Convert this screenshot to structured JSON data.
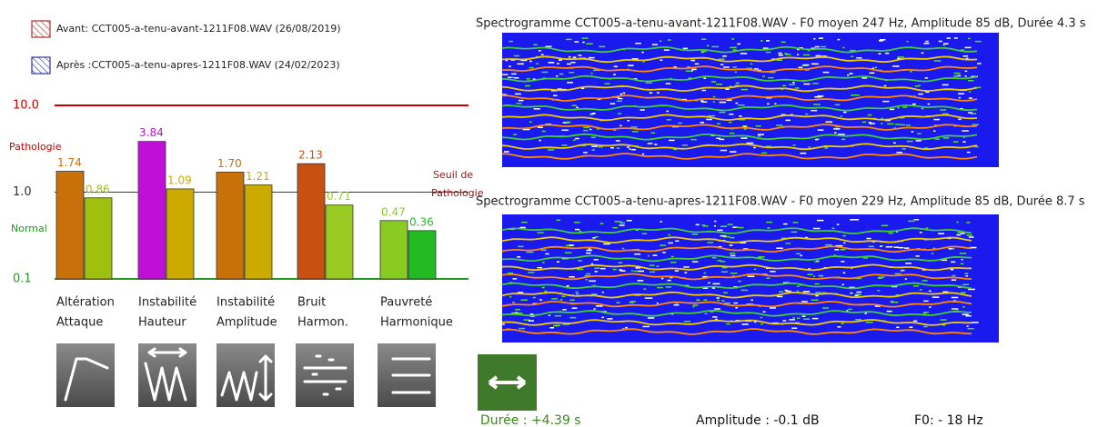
{
  "chart_data": {
    "type": "bar",
    "log_scale": true,
    "categories": [
      [
        "Altération",
        "Attaque"
      ],
      [
        "Instabilité",
        "Hauteur"
      ],
      [
        "Instabilité",
        "Amplitude"
      ],
      [
        "Bruit",
        "Harmon."
      ],
      [
        "Pauvreté",
        "Harmonique"
      ]
    ],
    "series": [
      {
        "name": "Avant: CCT005-a-tenu-avant-1211F08.WAV (26/08/2019)",
        "color": "#b03030",
        "bar_colors": [
          "#c8700a",
          "#c010d8",
          "#c8700a",
          "#c85010",
          "#88cc22"
        ],
        "values": [
          1.74,
          3.84,
          1.7,
          2.13,
          0.47
        ],
        "value_labels": [
          "1.74",
          "3.84",
          "1.70",
          "2.13",
          "0.47"
        ]
      },
      {
        "name": "Après :CCT005-a-tenu-apres-1211F08.WAV (24/02/2023)",
        "color": "#3030a0",
        "bar_colors": [
          "#a0c010",
          "#ccaa00",
          "#ccaa00",
          "#99cc22",
          "#22bb22"
        ],
        "values": [
          0.86,
          1.09,
          1.21,
          0.71,
          0.36
        ],
        "value_labels": [
          "0.86",
          "1.09",
          "1.21",
          "0.71",
          "0.36"
        ]
      }
    ],
    "ylim": [
      0.1,
      10
    ],
    "yticks": [
      {
        "value": 0.1,
        "label": "0.1"
      },
      {
        "value": 1,
        "label": "1.0"
      },
      {
        "value": 10,
        "label": "10.0"
      }
    ],
    "ytick_colors": [
      "#229922",
      "#333333",
      "#cc0000"
    ],
    "zones": {
      "pathology": "Pathologie",
      "normal": "Normal",
      "threshold": [
        "Seuil de",
        "Pathologie"
      ]
    }
  },
  "spectrograms": [
    {
      "title": "Spectrogramme CCT005-a-tenu-avant-1211F08.WAV - F0 moyen 247 Hz, Amplitude 85 dB, Durée 4.3 s"
    },
    {
      "title": "Spectrogramme CCT005-a-tenu-apres-1211F08.WAV - F0 moyen 229 Hz, Amplitude 85 dB, Durée 8.7 s"
    }
  ],
  "stats": {
    "duration": "Durée : +4.39 s",
    "amplitude": "Amplitude : -0.1 dB",
    "f0": "F0: - 18 Hz"
  }
}
